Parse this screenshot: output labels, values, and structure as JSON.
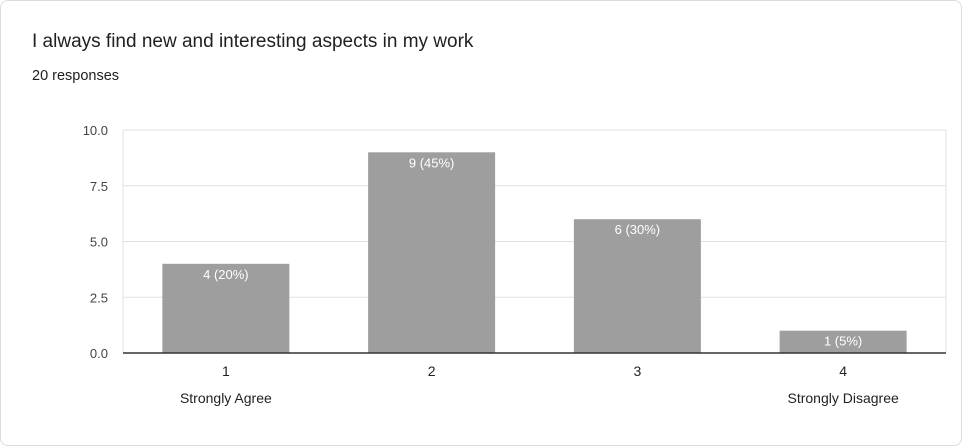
{
  "header": {
    "title": "I always find new and interesting aspects in my work",
    "responses": "20 responses"
  },
  "chart_data": {
    "type": "bar",
    "categories": [
      "1",
      "2",
      "3",
      "4"
    ],
    "category_sublabels": [
      "Strongly Agree",
      "",
      "",
      "Strongly Disagree"
    ],
    "values": [
      4,
      9,
      6,
      1
    ],
    "data_labels": [
      "4 (20%)",
      "9 (45%)",
      "6 (30%)",
      "1 (5%)"
    ],
    "ylim": [
      0,
      10
    ],
    "yticks": [
      0,
      2.5,
      5,
      7.5,
      10
    ],
    "ytick_labels": [
      "0.0",
      "2.5",
      "5.0",
      "7.5",
      "10.0"
    ],
    "grid": true,
    "bar_color": "#9e9e9e",
    "grid_color": "#e0e0e0",
    "axis_color": "#333333"
  }
}
